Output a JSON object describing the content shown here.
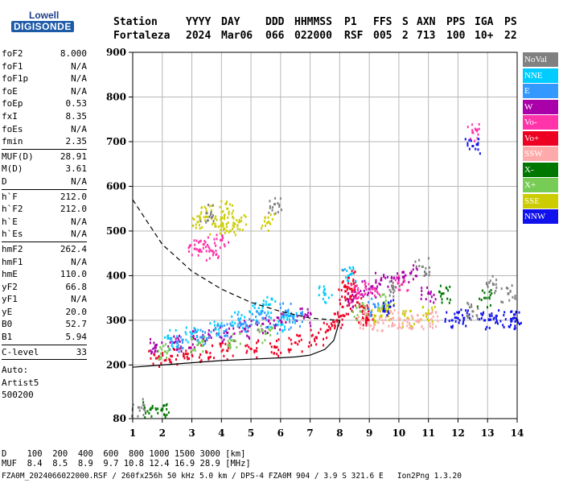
{
  "logo": {
    "top": "Lowell",
    "bottom": "DIGISONDE"
  },
  "header": {
    "labels": [
      "Station",
      "YYYY",
      "DAY",
      "DDD",
      "HHMMSS",
      "P1",
      "FFS",
      "S",
      "AXN",
      "PPS",
      "IGA",
      "PS"
    ],
    "values": [
      "Fortaleza",
      "2024",
      "Mar06",
      "066",
      "022000",
      "RSF",
      "005",
      "2",
      "713",
      "100",
      "10+",
      "22"
    ]
  },
  "params": {
    "group1": [
      {
        "label": "foF2",
        "value": "8.000"
      },
      {
        "label": "foF1",
        "value": "N/A"
      },
      {
        "label": "foF1p",
        "value": "N/A"
      },
      {
        "label": "foE",
        "value": "N/A"
      },
      {
        "label": "foEp",
        "value": "0.53"
      },
      {
        "label": "fxI",
        "value": "8.35"
      },
      {
        "label": "foEs",
        "value": "N/A"
      },
      {
        "label": "fmin",
        "value": "2.35"
      }
    ],
    "group2": [
      {
        "label": "MUF(D)",
        "value": "28.91"
      },
      {
        "label": "M(D)",
        "value": "3.61"
      },
      {
        "label": "D",
        "value": "N/A"
      }
    ],
    "group3": [
      {
        "label": "h`F",
        "value": "212.0"
      },
      {
        "label": "h`F2",
        "value": "212.0"
      },
      {
        "label": "h`E",
        "value": "N/A"
      },
      {
        "label": "h`Es",
        "value": "N/A"
      }
    ],
    "group4": [
      {
        "label": "hmF2",
        "value": "262.4"
      },
      {
        "label": "hmF1",
        "value": "N/A"
      },
      {
        "label": "hmE",
        "value": "110.0"
      },
      {
        "label": "yF2",
        "value": "66.8"
      },
      {
        "label": "yF1",
        "value": "N/A"
      },
      {
        "label": "yE",
        "value": "20.0"
      },
      {
        "label": "B0",
        "value": "52.7"
      },
      {
        "label": "B1",
        "value": "5.94"
      }
    ],
    "clevel": {
      "label": "C-level",
      "value": "33"
    },
    "scaling": [
      "Auto:",
      "Artist5",
      "500200"
    ]
  },
  "legend": [
    {
      "label": "NoVal",
      "color": "#808080"
    },
    {
      "label": "NNE",
      "color": "#00ccff"
    },
    {
      "label": "E",
      "color": "#3399ff"
    },
    {
      "label": "W",
      "color": "#aa00aa"
    },
    {
      "label": "Vo-",
      "color": "#ff33aa"
    },
    {
      "label": "Vo+",
      "color": "#ee0022"
    },
    {
      "label": "SSW",
      "color": "#ffaaaa"
    },
    {
      "label": "X-",
      "color": "#007700"
    },
    {
      "label": "X+",
      "color": "#77cc55"
    },
    {
      "label": "SSE",
      "color": "#cccc00"
    },
    {
      "label": "NNW",
      "color": "#1111ee"
    }
  ],
  "bottom": {
    "d_row": "D    100  200  400  600  800 1000 1500 3000 [km]",
    "muf_row": "MUF  8.4  8.5  8.9  9.7 10.8 12.4 16.9 28.9 [MHz]",
    "footer": "FZA0M_2024066022000.RSF / 260fx256h 50 kHz 5.0 km / DPS-4 FZA0M 904 / 3.9 S 321.6 E   Ion2Png 1.3.20"
  },
  "chart_data": {
    "type": "scatter",
    "xlim": [
      1,
      14
    ],
    "ylim": [
      80,
      900
    ],
    "x_ticks": [
      1,
      2,
      3,
      4,
      5,
      6,
      7,
      8,
      9,
      10,
      11,
      12,
      13,
      14
    ],
    "y_ticks": [
      80,
      200,
      300,
      400,
      500,
      600,
      700,
      800,
      900
    ],
    "grid": true,
    "clusters": [
      {
        "name": "Vo+",
        "color": "#ee0022",
        "points": [
          [
            1.8,
            215
          ],
          [
            2.3,
            220
          ],
          [
            2.8,
            225
          ],
          [
            3.5,
            228
          ],
          [
            4.2,
            232
          ],
          [
            5,
            236
          ],
          [
            5.8,
            240
          ],
          [
            6.5,
            250
          ],
          [
            7.2,
            262
          ],
          [
            7.6,
            278
          ],
          [
            7.9,
            300
          ],
          [
            8.1,
            330
          ],
          [
            8.2,
            365
          ],
          [
            8.3,
            395
          ],
          [
            8.4,
            370
          ],
          [
            8.6,
            340
          ],
          [
            8.8,
            315
          ],
          [
            8.9,
            300
          ]
        ]
      },
      {
        "name": "W",
        "color": "#aa00aa",
        "points": [
          [
            1.8,
            245
          ],
          [
            2.4,
            250
          ],
          [
            3,
            258
          ],
          [
            3.6,
            265
          ],
          [
            4.2,
            272
          ],
          [
            4.8,
            280
          ],
          [
            5.4,
            292
          ],
          [
            6,
            300
          ],
          [
            6.8,
            308
          ],
          [
            8.5,
            350
          ],
          [
            9,
            370
          ],
          [
            9.4,
            390
          ],
          [
            10,
            395
          ],
          [
            10.4,
            405
          ],
          [
            11,
            360
          ]
        ]
      },
      {
        "name": "NNE",
        "color": "#00ccff",
        "points": [
          [
            2.3,
            260
          ],
          [
            3,
            270
          ],
          [
            3.8,
            280
          ],
          [
            4.6,
            300
          ],
          [
            5.2,
            320
          ],
          [
            5.6,
            335
          ],
          [
            5.9,
            290
          ],
          [
            6.3,
            310
          ],
          [
            7.5,
            360
          ],
          [
            8.3,
            400
          ]
        ]
      },
      {
        "name": "E",
        "color": "#3399ff",
        "points": [
          [
            2.5,
            250
          ],
          [
            3.3,
            262
          ],
          [
            4.1,
            275
          ],
          [
            4.8,
            295
          ],
          [
            5.4,
            305
          ],
          [
            6.2,
            320
          ],
          [
            6.5,
            300
          ],
          [
            9.2,
            330
          ]
        ]
      },
      {
        "name": "X+",
        "color": "#77cc55",
        "points": [
          [
            2.1,
            230
          ],
          [
            3.2,
            245
          ],
          [
            4.4,
            255
          ],
          [
            5.5,
            270
          ],
          [
            8.7,
            320
          ],
          [
            9.5,
            340
          ]
        ]
      },
      {
        "name": "SSE",
        "color": "#cccc00",
        "points": [
          [
            3.2,
            520
          ],
          [
            3.5,
            540
          ],
          [
            3.8,
            510
          ],
          [
            4,
            530
          ],
          [
            4.3,
            500
          ],
          [
            4.6,
            520
          ],
          [
            4.2,
            550
          ],
          [
            5.6,
            520
          ],
          [
            9.2,
            310
          ],
          [
            9.6,
            320
          ],
          [
            10.3,
            305
          ],
          [
            11,
            315
          ]
        ]
      },
      {
        "name": "SSW",
        "color": "#ffaaaa",
        "points": [
          [
            8.8,
            300
          ],
          [
            9.3,
            295
          ],
          [
            9.8,
            305
          ],
          [
            10.2,
            300
          ],
          [
            10.6,
            298
          ],
          [
            11.1,
            302
          ]
        ]
      },
      {
        "name": "Vo-",
        "color": "#ff33aa",
        "points": [
          [
            3.1,
            460
          ],
          [
            3.4,
            470
          ],
          [
            3.7,
            455
          ],
          [
            4,
            480
          ],
          [
            8.6,
            360
          ],
          [
            9.1,
            370
          ],
          [
            10.1,
            380
          ],
          [
            12.5,
            720
          ]
        ]
      },
      {
        "name": "NNW",
        "color": "#1111ee",
        "points": [
          [
            11.8,
            300
          ],
          [
            12.2,
            305
          ],
          [
            12.5,
            690
          ],
          [
            12.9,
            300
          ],
          [
            13.3,
            310
          ],
          [
            13.8,
            303
          ],
          [
            14,
            300
          ],
          [
            9.7,
            330
          ]
        ]
      },
      {
        "name": "X-",
        "color": "#007700",
        "points": [
          [
            1.6,
            100
          ],
          [
            2,
            102
          ],
          [
            11.5,
            360
          ],
          [
            12.9,
            350
          ]
        ]
      },
      {
        "name": "NoVal",
        "color": "#808080",
        "points": [
          [
            1.2,
            105
          ],
          [
            3.5,
            540
          ],
          [
            5.8,
            560
          ],
          [
            9.8,
            370
          ],
          [
            10.8,
            420
          ],
          [
            12.5,
            320
          ],
          [
            13.2,
            380
          ],
          [
            13.7,
            360
          ]
        ]
      }
    ],
    "virtual_height_profile": {
      "style": "solid",
      "points": [
        [
          1,
          195
        ],
        [
          2,
          200
        ],
        [
          3,
          205
        ],
        [
          4,
          210
        ],
        [
          5,
          213
        ],
        [
          6,
          216
        ],
        [
          6.5,
          218
        ],
        [
          7,
          222
        ],
        [
          7.5,
          235
        ],
        [
          7.8,
          255
        ],
        [
          8,
          300
        ]
      ]
    },
    "true_height_profile": {
      "style": "dashed",
      "points": [
        [
          1,
          570
        ],
        [
          1.5,
          520
        ],
        [
          2,
          470
        ],
        [
          2.5,
          440
        ],
        [
          3,
          410
        ],
        [
          4,
          370
        ],
        [
          5,
          340
        ],
        [
          6,
          320
        ],
        [
          7,
          305
        ],
        [
          8,
          300
        ]
      ]
    }
  }
}
